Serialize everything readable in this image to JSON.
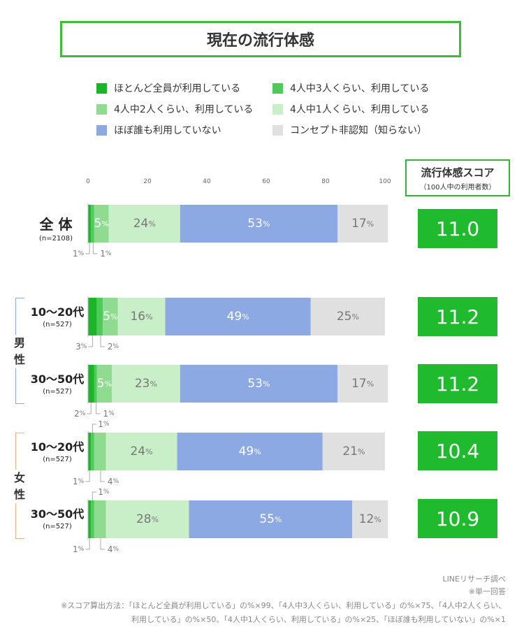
{
  "title": "現在の流行体感",
  "legend": [
    {
      "label": "ほとんど全員が利用している",
      "color": "#1cb52a"
    },
    {
      "label": "4人中3人くらい、利用している",
      "color": "#4ec95a"
    },
    {
      "label": "4人中2人くらい、利用している",
      "color": "#8fdc91"
    },
    {
      "label": "4人中1人くらい、利用している",
      "color": "#c8efc8"
    },
    {
      "label": "ほぼ誰も利用していない",
      "color": "#8ca9e3"
    },
    {
      "label": "コンセプト非認知（知らない）",
      "color": "#e0e0e0"
    }
  ],
  "score_header": {
    "title": "流行体感スコア",
    "subtitle": "（100人中の利用者数）"
  },
  "gender_labels": {
    "male": "男性",
    "female": "女性"
  },
  "chart_data": {
    "type": "bar",
    "orientation": "horizontal",
    "stacked": true,
    "xlim": [
      0,
      100
    ],
    "ticks": [
      "0",
      "20",
      "40",
      "60",
      "80",
      "100"
    ],
    "series_names": [
      "ほとんど全員が利用している",
      "4人中3人くらい、利用している",
      "4人中2人くらい、利用している",
      "4人中1人くらい、利用している",
      "ほぼ誰も利用していない",
      "コンセプト非認知（知らない）"
    ],
    "rows": [
      {
        "label": "全 体",
        "n": "(n=2108)",
        "values": [
          1,
          1,
          5,
          24,
          53,
          17
        ],
        "score": "11.0",
        "outside_left": {
          "idx": 0,
          "text": "1"
        },
        "outside_right": {
          "idx": 1,
          "text": "1"
        }
      },
      {
        "label": "10〜20代",
        "n": "(n=527)",
        "values": [
          3,
          2,
          5,
          16,
          49,
          25
        ],
        "score": "11.2",
        "outside_left": {
          "idx": 0,
          "text": "3"
        },
        "outside_right": {
          "idx": 1,
          "text": "2"
        }
      },
      {
        "label": "30〜50代",
        "n": "(n=527)",
        "values": [
          2,
          1,
          5,
          23,
          53,
          17
        ],
        "score": "11.2",
        "outside_left": {
          "idx": 0,
          "text": "2"
        },
        "outside_right": {
          "idx": 1,
          "text": "1"
        }
      },
      {
        "label": "10〜20代",
        "n": "(n=527)",
        "values": [
          1,
          1,
          4,
          24,
          49,
          21
        ],
        "score": "10.4",
        "outside_left": {
          "idx": 0,
          "text": "1"
        },
        "outside_top": {
          "idx": 1,
          "text": "1"
        },
        "outside_right": {
          "idx": 2,
          "text": "4"
        }
      },
      {
        "label": "30〜50代",
        "n": "(n=527)",
        "values": [
          1,
          1,
          4,
          28,
          55,
          12
        ],
        "score": "10.9",
        "outside_left": {
          "idx": 0,
          "text": "1"
        },
        "outside_top": {
          "idx": 1,
          "text": "1"
        },
        "outside_right": {
          "idx": 2,
          "text": "4"
        }
      }
    ],
    "unit": "%"
  },
  "footnotes": {
    "source": "LINEリサーチ調べ",
    "single": "※単一回答",
    "method1": "※スコア算出方法：「ほとんど全員が利用している」の%×99、「4人中3人くらい、利用している」の%×75、「4人中2人くらい、",
    "method2": "利用している」の%×50、「4人中1人くらい、利用している」の%×25、「ほぼ誰も利用していない」の%×1"
  }
}
